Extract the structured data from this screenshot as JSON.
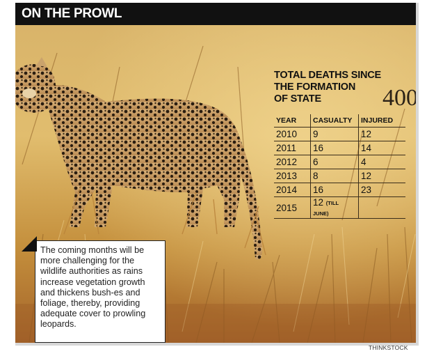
{
  "header": {
    "title": "ON THE PROWL"
  },
  "stats": {
    "title_lines": [
      "TOTAL DEATHS SINCE",
      "THE FORMATION",
      "OF STATE"
    ],
    "total": "400",
    "columns": [
      "YEAR",
      "CASUALTY",
      "INJURED"
    ]
  },
  "chart_data": {
    "type": "table",
    "title": "TOTAL DEATHS SINCE THE FORMATION OF STATE",
    "total": 400,
    "columns": [
      "YEAR",
      "CASUALTY",
      "INJURED"
    ],
    "rows": [
      {
        "year": "2010",
        "casualty": "9",
        "injured": "12"
      },
      {
        "year": "2011",
        "casualty": "16",
        "injured": "14"
      },
      {
        "year": "2012",
        "casualty": "6",
        "injured": "4"
      },
      {
        "year": "2013",
        "casualty": "8",
        "injured": "12"
      },
      {
        "year": "2014",
        "casualty": "16",
        "injured": "23"
      },
      {
        "year": "2015",
        "casualty": "12",
        "casualty_note": "(TILL JUNE)",
        "injured": ""
      }
    ]
  },
  "callout": {
    "text": "The coming months will be more challenging for the wildlife authorities as rains increase vegetation growth and thickens bush-es and foliage, thereby, providing adequate cover to prowling leopards."
  },
  "credit": "THINKSTOCK",
  "colors": {
    "header": "#111111",
    "grass": "#c99a45",
    "text": "#111111"
  }
}
